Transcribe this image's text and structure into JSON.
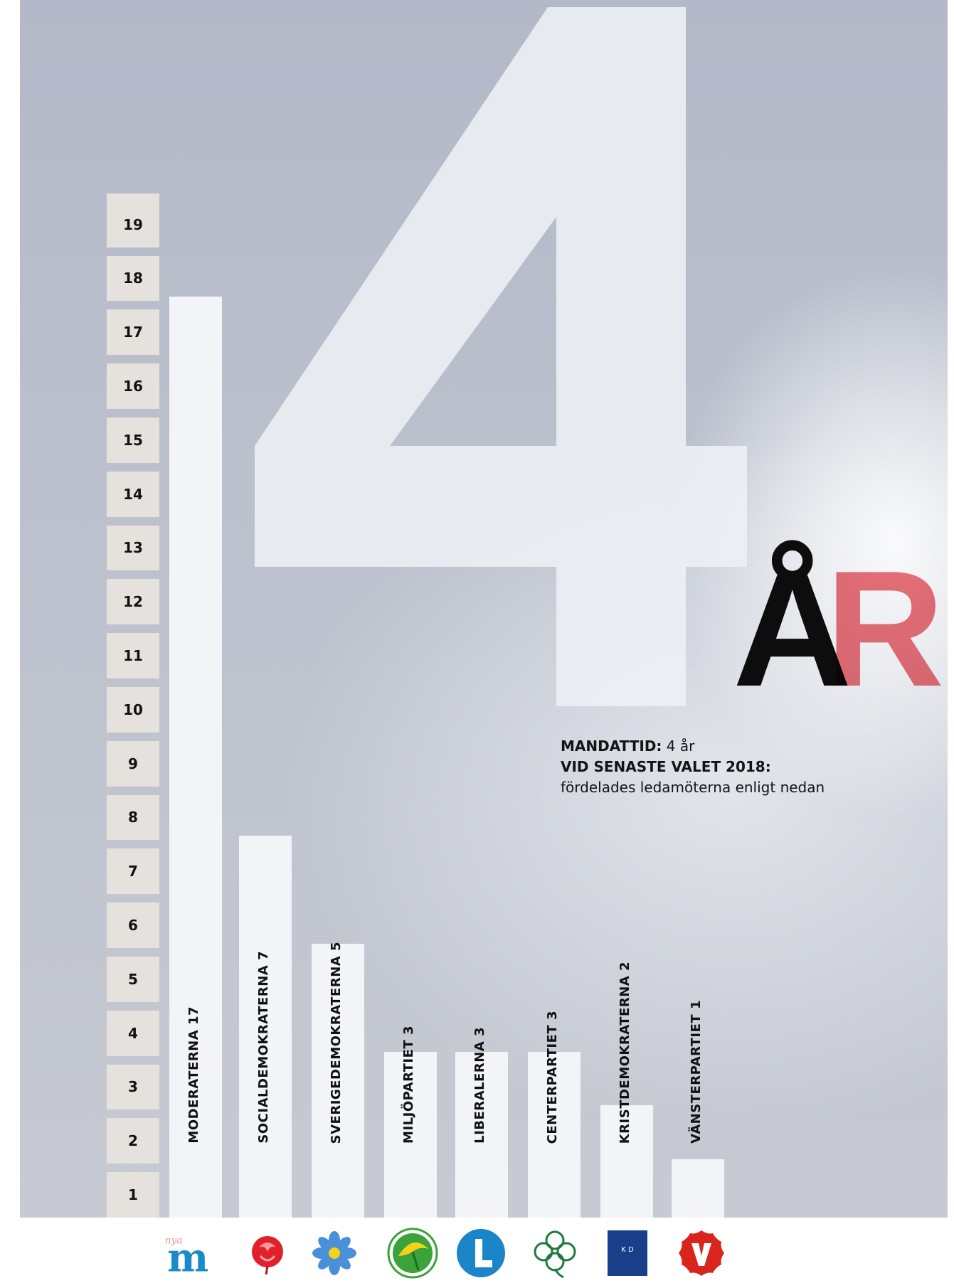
{
  "chart_data": {
    "type": "bar",
    "orientation": "vertical",
    "categories": [
      "MODERATERNA",
      "SOCIALDEMOKRATERNA",
      "SVERIGEDEMOKRATERNA",
      "MILJÖPARTIET",
      "LIBERALERNA",
      "CENTERPARTIET",
      "KRISTDEMOKRATERNA",
      "VÄNSTERPARTIET"
    ],
    "values": [
      17,
      7,
      5,
      3,
      3,
      3,
      2,
      1
    ],
    "labels": [
      "MODERATERNA 17",
      "SOCIALDEMOKRATERNA 7",
      "SVERIGEDEMOKRATERNA 5",
      "MILJÖPARTIET 3",
      "LIBERALERNA 3",
      "CENTERPARTIET 3",
      "KRISTDEMOKRATERNA 2",
      "VÄNSTERPARTIET 1"
    ],
    "scale_ticks": [
      "1",
      "2",
      "3",
      "4",
      "5",
      "6",
      "7",
      "8",
      "9",
      "10",
      "11",
      "12",
      "13",
      "14",
      "15",
      "16",
      "17",
      "18",
      "19"
    ],
    "ylim": [
      0,
      19
    ],
    "bar_color": "#f3f4f8",
    "title": "",
    "xlabel": "",
    "ylabel": ""
  },
  "headline": {
    "number": "4",
    "word_first": "Å",
    "word_second": "R",
    "word_first_color": "#0d0d0d",
    "word_second_color": "#ec6b73"
  },
  "info": {
    "line1_label": "MANDATTID:",
    "line1_value": " 4 år",
    "line2": "VID SENASTE VALET 2018:",
    "line3": "fördelades ledamöterna enligt nedan"
  },
  "logos": [
    {
      "party": "moderaterna",
      "icon": "m-logo",
      "color": "#1a8ac8"
    },
    {
      "party": "socialdemokraterna",
      "icon": "rose-logo",
      "color": "#e3202a"
    },
    {
      "party": "sverigedemokraterna",
      "icon": "flower-logo",
      "color": "#4a90d8"
    },
    {
      "party": "miljopartiet",
      "icon": "dandelion-logo",
      "color": "#3aa33a"
    },
    {
      "party": "liberalerna",
      "icon": "l-logo",
      "color": "#1a85c8"
    },
    {
      "party": "centerpartiet",
      "icon": "clover-logo",
      "color": "#1e7a3e"
    },
    {
      "party": "kristdemokraterna",
      "icon": "kd-logo",
      "color": "#1a3f8a"
    },
    {
      "party": "vansterpartiet",
      "icon": "v-logo",
      "color": "#d9251d"
    }
  ],
  "logo_texts": {
    "moderaterna_script": "nya",
    "moderaterna_letter": "m",
    "kd_letters": "K D"
  }
}
